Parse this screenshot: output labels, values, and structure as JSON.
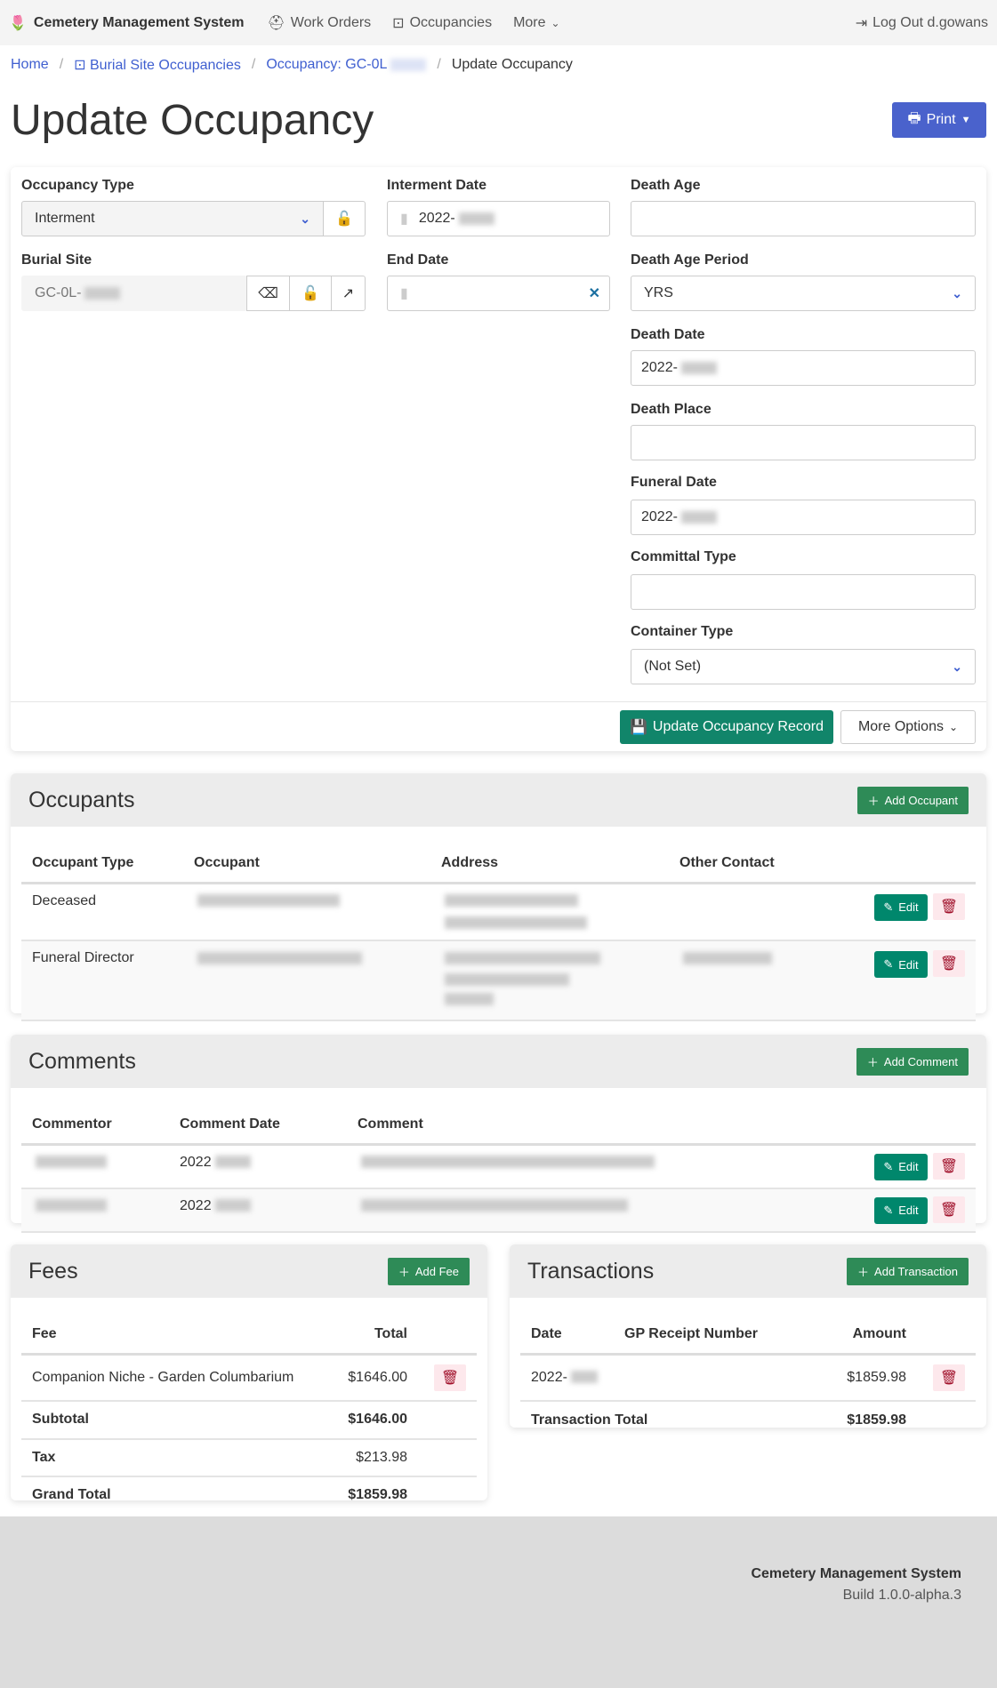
{
  "nav": {
    "brand": "Cemetery Management System",
    "work_orders": "Work Orders",
    "occupancies": "Occupancies",
    "more": "More",
    "logout": "Log Out d.gowans"
  },
  "breadcrumb": {
    "home": "Home",
    "burial_site_occupancies": "Burial Site Occupancies",
    "occupancy": "Occupancy: GC-0L",
    "current": "Update Occupancy"
  },
  "page": {
    "title": "Update Occupancy",
    "print": "Print"
  },
  "form": {
    "occupancy_type": {
      "label": "Occupancy Type",
      "value": "Interment"
    },
    "burial_site": {
      "label": "Burial Site",
      "value": "GC-0L-"
    },
    "interment_date": {
      "label": "Interment Date",
      "value": "2022-"
    },
    "end_date": {
      "label": "End Date",
      "value": ""
    },
    "death_age": {
      "label": "Death Age",
      "value": ""
    },
    "death_age_period": {
      "label": "Death Age Period",
      "value": "YRS"
    },
    "death_date": {
      "label": "Death Date",
      "value": "2022-"
    },
    "death_place": {
      "label": "Death Place",
      "value": ""
    },
    "funeral_date": {
      "label": "Funeral Date",
      "value": "2022-"
    },
    "committal_type": {
      "label": "Committal Type",
      "value": ""
    },
    "container_type": {
      "label": "Container Type",
      "value": "(Not Set)"
    },
    "update_button": "Update Occupancy Record",
    "more_options": "More Options"
  },
  "occupants": {
    "title": "Occupants",
    "add": "Add Occupant",
    "headers": [
      "Occupant Type",
      "Occupant",
      "Address",
      "Other Contact"
    ],
    "rows": [
      {
        "type": "Deceased"
      },
      {
        "type": "Funeral Director"
      }
    ],
    "edit": "Edit"
  },
  "comments": {
    "title": "Comments",
    "add": "Add Comment",
    "headers": [
      "Commentor",
      "Comment Date",
      "Comment"
    ],
    "rows": [
      {
        "date": "2022"
      },
      {
        "date": "2022"
      }
    ],
    "edit": "Edit"
  },
  "fees": {
    "title": "Fees",
    "add": "Add Fee",
    "headers": [
      "Fee",
      "Total"
    ],
    "rows": [
      {
        "fee": "Companion Niche - Garden Columbarium",
        "total": "$1646.00"
      }
    ],
    "subtotal_label": "Subtotal",
    "subtotal": "$1646.00",
    "tax_label": "Tax",
    "tax": "$213.98",
    "grand_total_label": "Grand Total",
    "grand_total": "$1859.98"
  },
  "transactions": {
    "title": "Transactions",
    "add": "Add Transaction",
    "headers": [
      "Date",
      "GP Receipt Number",
      "Amount"
    ],
    "rows": [
      {
        "date": "2022-",
        "amount": "$1859.98"
      }
    ],
    "total_label": "Transaction Total",
    "total": "$1859.98"
  },
  "footer": {
    "name": "Cemetery Management System",
    "build": "Build 1.0.0-alpha.3"
  },
  "colors": {
    "primary": "#4a62cc",
    "success": "#2e8b57",
    "edit": "#00876c",
    "danger": "#a0102a",
    "link": "#3f5fd0"
  }
}
